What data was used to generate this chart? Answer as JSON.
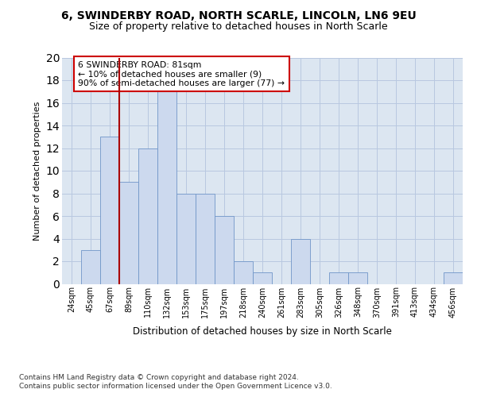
{
  "title1": "6, SWINDERBY ROAD, NORTH SCARLE, LINCOLN, LN6 9EU",
  "title2": "Size of property relative to detached houses in North Scarle",
  "xlabel": "Distribution of detached houses by size in North Scarle",
  "ylabel": "Number of detached properties",
  "categories": [
    "24sqm",
    "45sqm",
    "67sqm",
    "89sqm",
    "110sqm",
    "132sqm",
    "153sqm",
    "175sqm",
    "197sqm",
    "218sqm",
    "240sqm",
    "261sqm",
    "283sqm",
    "305sqm",
    "326sqm",
    "348sqm",
    "370sqm",
    "391sqm",
    "413sqm",
    "434sqm",
    "456sqm"
  ],
  "values": [
    0,
    3,
    13,
    9,
    12,
    17,
    8,
    8,
    6,
    2,
    1,
    0,
    4,
    0,
    1,
    1,
    0,
    0,
    0,
    0,
    1
  ],
  "bar_color": "#ccd9ee",
  "bar_edge_color": "#7096c8",
  "grid_color": "#b8c8e0",
  "background_color": "#dce6f1",
  "vline_color": "#aa0000",
  "annotation_text": "6 SWINDERBY ROAD: 81sqm\n← 10% of detached houses are smaller (9)\n90% of semi-detached houses are larger (77) →",
  "annotation_box_color": "#ffffff",
  "annotation_box_edge": "#cc0000",
  "footer1": "Contains HM Land Registry data © Crown copyright and database right 2024.",
  "footer2": "Contains public sector information licensed under the Open Government Licence v3.0.",
  "ylim": [
    0,
    20
  ],
  "yticks": [
    0,
    2,
    4,
    6,
    8,
    10,
    12,
    14,
    16,
    18,
    20
  ]
}
